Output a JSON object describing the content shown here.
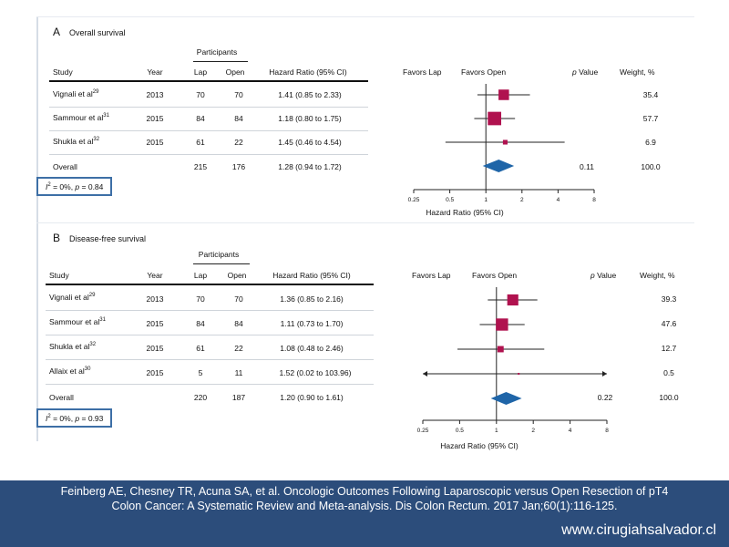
{
  "panels": [
    {
      "letter": "A",
      "title": "Overall survival",
      "headers": {
        "participants": "Participants",
        "study": "Study",
        "year": "Year",
        "lap": "Lap",
        "open": "Open",
        "hr": "Hazard Ratio (95% CI)",
        "favors_lap": "Favors Lap",
        "favors_open": "Favors Open",
        "pvalue_italic": "p",
        "pvalue_rest": " Value",
        "weight": "Weight, %"
      },
      "rows": [
        {
          "study": "Vignali et al",
          "ref": "29",
          "year": "2013",
          "lap": "70",
          "open": "70",
          "hr_text": "1.41 (0.85 to 2.33)",
          "pvalue": "",
          "weight": "35.4"
        },
        {
          "study": "Sammour et al",
          "ref": "31",
          "year": "2015",
          "lap": "84",
          "open": "84",
          "hr_text": "1.18 (0.80 to 1.75)",
          "pvalue": "",
          "weight": "57.7"
        },
        {
          "study": "Shukla et al",
          "ref": "32",
          "year": "2015",
          "lap": "61",
          "open": "22",
          "hr_text": "1.45 (0.46 to 4.54)",
          "pvalue": "",
          "weight": "6.9"
        }
      ],
      "overall": {
        "label": "Overall",
        "year": "",
        "lap": "215",
        "open": "176",
        "hr_text": "1.28 (0.94 to 1.72)",
        "pvalue": "0.11",
        "weight": "100.0"
      },
      "heterogeneity": {
        "prefix": "I",
        "sup": "2",
        "text": " = 0%, ",
        "p_italic": "p",
        "p_rest": " = 0.84"
      },
      "axis_label": "Hazard Ratio (95% CI)"
    },
    {
      "letter": "B",
      "title": "Disease-free survival",
      "headers": {
        "participants": "Participants",
        "study": "Study",
        "year": "Year",
        "lap": "Lap",
        "open": "Open",
        "hr": "Hazard Ratio (95% CI)",
        "favors_lap": "Favors Lap",
        "favors_open": "Favors Open",
        "pvalue_italic": "p",
        "pvalue_rest": " Value",
        "weight": "Weight, %"
      },
      "rows": [
        {
          "study": "Vignali et al",
          "ref": "29",
          "year": "2013",
          "lap": "70",
          "open": "70",
          "hr_text": "1.36 (0.85 to 2.16)",
          "pvalue": "",
          "weight": "39.3"
        },
        {
          "study": "Sammour et al",
          "ref": "31",
          "year": "2015",
          "lap": "84",
          "open": "84",
          "hr_text": "1.11 (0.73 to 1.70)",
          "pvalue": "",
          "weight": "47.6"
        },
        {
          "study": "Shukla et al",
          "ref": "32",
          "year": "2015",
          "lap": "61",
          "open": "22",
          "hr_text": "1.08 (0.48 to 2.46)",
          "pvalue": "",
          "weight": "12.7"
        },
        {
          "study": "Allaix et al",
          "ref": "30",
          "year": "2015",
          "lap": "5",
          "open": "11",
          "hr_text": "1.52 (0.02 to 103.96)",
          "pvalue": "",
          "weight": "0.5"
        }
      ],
      "overall": {
        "label": "Overall",
        "year": "",
        "lap": "220",
        "open": "187",
        "hr_text": "1.20 (0.90 to 1.61)",
        "pvalue": "0.22",
        "weight": "100.0"
      },
      "heterogeneity": {
        "prefix": "I",
        "sup": "2",
        "text": " = 0%, ",
        "p_italic": "p",
        "p_rest": " = 0.93"
      },
      "axis_label": "Hazard Ratio (95% CI)"
    }
  ],
  "chart_data": [
    {
      "type": "scatter",
      "title": "Overall survival",
      "xlabel": "Hazard Ratio (95% CI)",
      "x_scale": "log",
      "xlim": [
        0.25,
        8
      ],
      "ticks": [
        0.25,
        0.5,
        1,
        2,
        4,
        8
      ],
      "tick_labels": [
        "0.25",
        "0.5",
        "1",
        "2",
        "4",
        "8"
      ],
      "series": [
        {
          "values": [
            {
              "label": "Vignali et al",
              "hr": 1.41,
              "lo": 0.85,
              "hi": 2.33,
              "weight": 35.4
            },
            {
              "label": "Sammour et al",
              "hr": 1.18,
              "lo": 0.8,
              "hi": 1.75,
              "weight": 57.7
            },
            {
              "label": "Shukla et al",
              "hr": 1.45,
              "lo": 0.46,
              "hi": 4.54,
              "weight": 6.9
            }
          ]
        }
      ],
      "overall": {
        "hr": 1.28,
        "lo": 0.94,
        "hi": 1.72
      },
      "marker_color": "#b0124f",
      "diamond_color": "#1f65a8"
    },
    {
      "type": "scatter",
      "title": "Disease-free survival",
      "xlabel": "Hazard Ratio (95% CI)",
      "x_scale": "log",
      "xlim": [
        0.25,
        8
      ],
      "ticks": [
        0.25,
        0.5,
        1,
        2,
        4,
        8
      ],
      "tick_labels": [
        "0.25",
        "0.5",
        "1",
        "2",
        "4",
        "8"
      ],
      "series": [
        {
          "values": [
            {
              "label": "Vignali et al",
              "hr": 1.36,
              "lo": 0.85,
              "hi": 2.16,
              "weight": 39.3
            },
            {
              "label": "Sammour et al",
              "hr": 1.11,
              "lo": 0.73,
              "hi": 1.7,
              "weight": 47.6
            },
            {
              "label": "Shukla et al",
              "hr": 1.08,
              "lo": 0.48,
              "hi": 2.46,
              "weight": 12.7
            },
            {
              "label": "Allaix et al",
              "hr": 1.52,
              "lo": 0.02,
              "hi": 103.96,
              "weight": 0.5
            }
          ]
        }
      ],
      "overall": {
        "hr": 1.2,
        "lo": 0.9,
        "hi": 1.61
      },
      "marker_color": "#b0124f",
      "diamond_color": "#1f65a8"
    }
  ],
  "footer": {
    "citation": "Feinberg AE, Chesney TR, Acuna SA, et al. Oncologic Outcomes Following Laparoscopic versus Open Resection of pT4 Colon Cancer: A Systematic Review and Meta-analysis. Dis Colon Rectum. 2017 Jan;60(1):116-125.",
    "website": "www.cirugiahsalvador.cl"
  },
  "colors": {
    "footer_bg": "#2c4d7b",
    "het_box": "#3d6fa6",
    "square": "#b0124f",
    "diamond": "#1f65a8"
  }
}
